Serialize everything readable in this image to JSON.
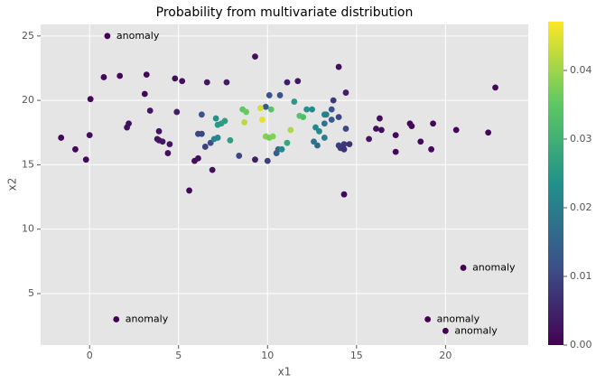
{
  "chart_data": {
    "type": "scatter",
    "title": "Probability from multivariate distribution",
    "xlabel": "x1",
    "ylabel": "x2",
    "x": [
      1,
      1.5,
      21,
      19,
      20,
      -1.6,
      -0.8,
      -0.2,
      0,
      0.05,
      0.8,
      1.7,
      2.1,
      2.2,
      3.1,
      3.2,
      3.4,
      3.8,
      3.9,
      3.9,
      4.1,
      4.4,
      4.5,
      4.9,
      4.8,
      5.2,
      5.6,
      5.9,
      6.1,
      6.6,
      6.9,
      7.7,
      9.3,
      9.3,
      11.1,
      11.7,
      14,
      14.4,
      14.3,
      15.7,
      16.1,
      16.3,
      16.4,
      17.2,
      17.2,
      18,
      18.1,
      18.6,
      19.2,
      19.3,
      20.6,
      22.4,
      22.8,
      6.1,
      6.3,
      6.3,
      6.5,
      6.8,
      8.4,
      10,
      10.1,
      10.7,
      10.6,
      10.5,
      13.6,
      13.7,
      14,
      14,
      14.1,
      14.3,
      14.3,
      14.4,
      14.6,
      13.6,
      13.2,
      12.8,
      12.6,
      9.9,
      7.1,
      7.2,
      7.4,
      7.2,
      7.6,
      7,
      7.9,
      11.1,
      11.5,
      12.2,
      12.5,
      12.7,
      12.9,
      13.2,
      13.3,
      13.2,
      10.8,
      8.6,
      8.8,
      10.2,
      11.8,
      12,
      9.9,
      10.1,
      10.3,
      8.7,
      9.7,
      11.3,
      9.6
    ],
    "y": [
      25,
      3,
      7,
      3,
      2.1,
      17.1,
      16.2,
      15.4,
      17.3,
      20.1,
      21.8,
      21.9,
      17.9,
      18.2,
      20.5,
      22,
      19.2,
      17,
      17.6,
      16.9,
      16.8,
      15.9,
      16.6,
      19.1,
      21.7,
      21.5,
      13,
      15.3,
      15.5,
      21.4,
      14.6,
      21.4,
      23.4,
      15.4,
      21.4,
      21.5,
      22.6,
      20.6,
      12.7,
      17,
      17.8,
      18.6,
      17.7,
      17.3,
      16,
      18.2,
      18,
      16.8,
      16.2,
      18.2,
      17.7,
      17.5,
      21,
      17.4,
      17.4,
      18.9,
      16.4,
      16.7,
      15.7,
      15.3,
      20.4,
      20.4,
      16.2,
      15.9,
      19.3,
      20,
      18.7,
      16.5,
      16.3,
      16.6,
      16.2,
      17.8,
      16.6,
      18.5,
      18.2,
      16.5,
      16.8,
      19.5,
      18.6,
      17.1,
      18.2,
      18.1,
      18.4,
      17,
      16.9,
      16.7,
      19.9,
      19.3,
      19.3,
      17.9,
      17.6,
      18.9,
      18.9,
      17.1,
      16.2,
      19.3,
      19.1,
      19.3,
      18.8,
      18.7,
      17.2,
      17.1,
      17.2,
      18.3,
      18.5,
      17.7,
      19.4
    ],
    "values": [
      0,
      0,
      0,
      0,
      0,
      0.001,
      0.001,
      0.001,
      0.002,
      0.001,
      0.001,
      0.001,
      0.002,
      0.002,
      0.001,
      0.001,
      0.003,
      0.003,
      0.003,
      0.003,
      0.003,
      0.002,
      0.003,
      0.004,
      0.002,
      0.002,
      0.001,
      0.002,
      0.002,
      0.003,
      0.002,
      0.004,
      0.002,
      0.004,
      0.004,
      0.003,
      0.002,
      0.004,
      0.001,
      0.003,
      0.002,
      0.002,
      0.002,
      0.001,
      0.001,
      0.001,
      0.001,
      0.001,
      0.001,
      0.001,
      0.001,
      0.001,
      0.001,
      0.01,
      0.01,
      0.012,
      0.009,
      0.011,
      0.01,
      0.009,
      0.012,
      0.012,
      0.016,
      0.014,
      0.012,
      0.008,
      0.01,
      0.009,
      0.008,
      0.008,
      0.007,
      0.01,
      0.007,
      0.013,
      0.018,
      0.016,
      0.018,
      0.013,
      0.024,
      0.022,
      0.026,
      0.025,
      0.026,
      0.021,
      0.026,
      0.028,
      0.025,
      0.024,
      0.022,
      0.022,
      0.022,
      0.022,
      0.02,
      0.02,
      0.022,
      0.035,
      0.036,
      0.034,
      0.034,
      0.033,
      0.038,
      0.037,
      0.038,
      0.042,
      0.045,
      0.041,
      0.044
    ],
    "labels": [
      "anomaly",
      "anomaly",
      "anomaly",
      "anomaly",
      "anomaly",
      null,
      null,
      null,
      null,
      null,
      null,
      null,
      null,
      null,
      null,
      null,
      null,
      null,
      null,
      null,
      null,
      null,
      null,
      null,
      null,
      null,
      null,
      null,
      null,
      null,
      null,
      null,
      null,
      null,
      null,
      null,
      null,
      null,
      null,
      null,
      null,
      null,
      null,
      null,
      null,
      null,
      null,
      null,
      null,
      null,
      null,
      null,
      null,
      null,
      null,
      null,
      null,
      null,
      null,
      null,
      null,
      null,
      null,
      null,
      null,
      null,
      null,
      null,
      null,
      null,
      null,
      null,
      null,
      null,
      null,
      null,
      null,
      null,
      null,
      null,
      null,
      null,
      null,
      null,
      null,
      null,
      null,
      null,
      null,
      null,
      null,
      null,
      null,
      null,
      null,
      null,
      null,
      null,
      null,
      null,
      null,
      null,
      null,
      null,
      null,
      null,
      null
    ],
    "xlim": [
      -2.75,
      24.65
    ],
    "ylim": [
      1.0,
      25.9
    ],
    "xticks": [
      0,
      5,
      10,
      15,
      20
    ],
    "yticks": [
      5,
      10,
      15,
      20,
      25
    ],
    "grid": true,
    "colormap": "viridis",
    "clim": [
      0,
      0.0471
    ],
    "cticks": [
      {
        "value": 0,
        "label": "0.00"
      },
      {
        "value": 0.01,
        "label": "0.01"
      },
      {
        "value": 0.02,
        "label": "0.02"
      },
      {
        "value": 0.03,
        "label": "0.03"
      },
      {
        "value": 0.04,
        "label": "0.04"
      }
    ]
  }
}
